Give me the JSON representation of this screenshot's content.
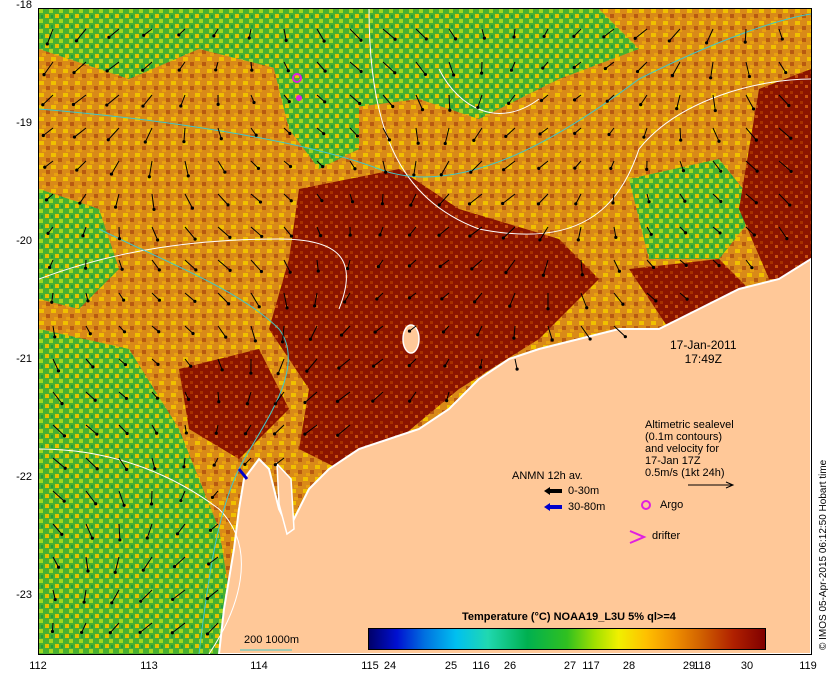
{
  "map": {
    "y_axis_labels": [
      "-18",
      "-19",
      "-20",
      "-21",
      "-22",
      "-23"
    ],
    "x_axis_labels": [
      "112",
      "113",
      "114",
      "115",
      "116",
      "117",
      "118",
      "119"
    ],
    "date": "17-Jan-2011",
    "time": "17:49Z"
  },
  "altimetry": {
    "lines": [
      "Altimetric sealevel",
      "(0.1m contours)",
      "and velocity for",
      "17-Jan 17Z",
      "0.5m/s (1kt 24h)"
    ]
  },
  "anmn": {
    "title": "ANMN 12h av.",
    "depth1": "0-30m",
    "depth1_color": "#000000",
    "depth2": "30-80m",
    "depth2_color": "#0000cc"
  },
  "markers": {
    "argo_label": "Argo",
    "argo_color": "#e020e0",
    "drifter_label": "drifter",
    "drifter_color": "#e020e0"
  },
  "colorbar": {
    "title": "Temperature (°C) NOAA19_L3U 5% ql>=4",
    "ticks": [
      "24",
      "25",
      "26",
      "27",
      "28",
      "29",
      "30"
    ]
  },
  "bathymetry": {
    "label": "200  1000m",
    "color": "#40c8c8"
  },
  "credit": "© IMOS 05-Apr-2015 06:12:50 Hobart time",
  "colors": {
    "land": "#ffc898",
    "warm": "#8b1000",
    "orange": "#e08a10",
    "yellow": "#f0c000",
    "green": "#40b030",
    "lightgreen": "#90d030"
  }
}
